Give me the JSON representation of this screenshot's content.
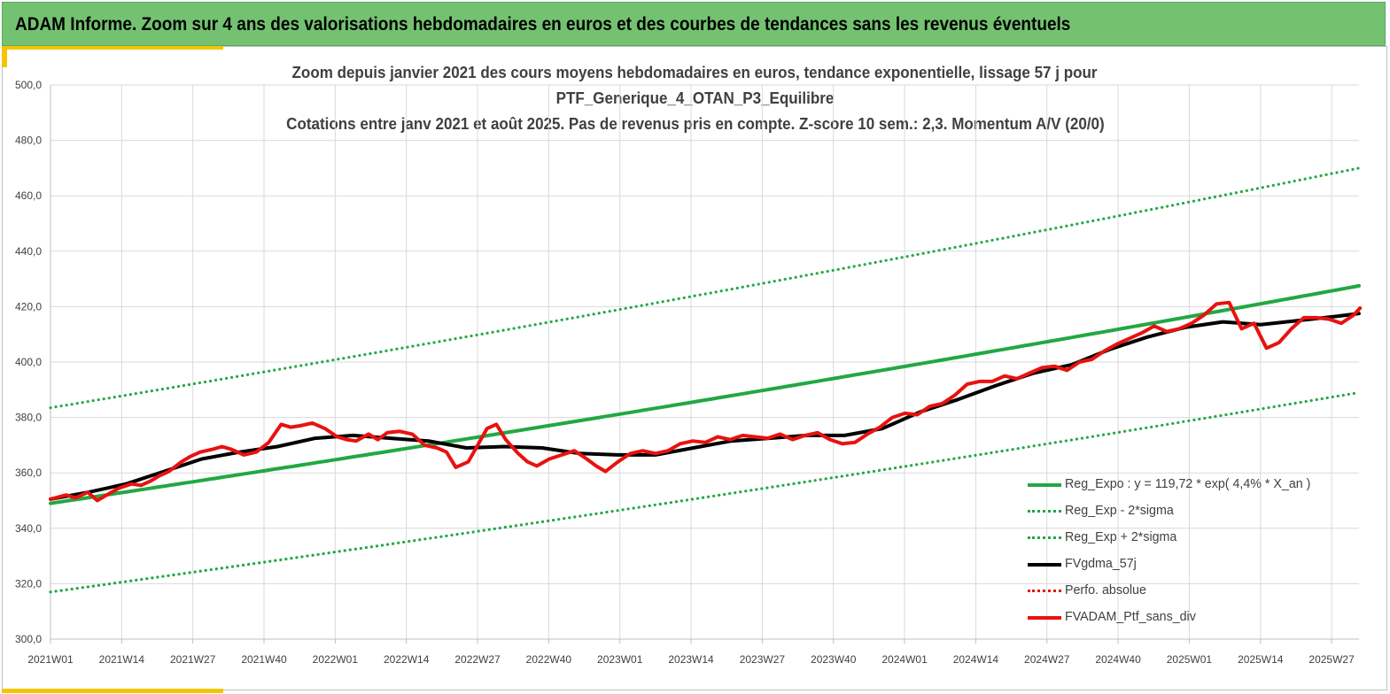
{
  "banner": {
    "title": "ADAM Informe. Zoom sur 4 ans des valorisations hebdomadaires en euros et des courbes de tendances sans les revenus éventuels"
  },
  "chart_data": {
    "type": "line",
    "title_lines": [
      "Zoom depuis janvier 2021 des cours moyens hebdomadaires  en euros, tendance exponentielle, lissage 57 j pour",
      "PTF_Generique_4_OTAN_P3_Equilibre",
      "Cotations  entre janv 2021 et août 2025. Pas de revenus pris en compte. Z-score 10 sem.: 2,3. Momentum A/V (20/0)"
    ],
    "ylim": [
      300,
      500
    ],
    "y_ticks": [
      "300,0",
      "320,0",
      "340,0",
      "360,0",
      "380,0",
      "400,0",
      "420,0",
      "440,0",
      "460,0",
      "480,0",
      "500,0"
    ],
    "x_tick_labels": [
      "2021W01",
      "2021W14",
      "2021W27",
      "2021W40",
      "2022W01",
      "2022W14",
      "2022W27",
      "2022W40",
      "2023W01",
      "2023W14",
      "2023W27",
      "2023W40",
      "2024W01",
      "2024W14",
      "2024W27",
      "2024W40",
      "2025W01",
      "2025W14",
      "2025W27"
    ],
    "x_tick_step_weeks": 13,
    "n_weeks": 240,
    "grid": true,
    "legend_position": "bottom-right",
    "series": [
      {
        "name": "Reg_Expo : y = 119,72 * exp( 4,4% *  X_an )",
        "style": "solid",
        "color": "#22a843",
        "width": 4,
        "points": [
          [
            0,
            349.0
          ],
          [
            239,
            427.5
          ]
        ],
        "interp": "exp"
      },
      {
        "name": "Reg_Exp - 2*sigma",
        "style": "dotted",
        "color": "#22a843",
        "width": 3,
        "points": [
          [
            0,
            317.0
          ],
          [
            239,
            389.0
          ]
        ],
        "interp": "exp"
      },
      {
        "name": "Reg_Exp + 2*sigma",
        "style": "dotted",
        "color": "#22a843",
        "width": 3,
        "points": [
          [
            0,
            383.5
          ],
          [
            239,
            470.0
          ]
        ],
        "interp": "exp"
      },
      {
        "name": "FVgdma_57j",
        "style": "solid",
        "color": "#000000",
        "width": 4,
        "points": [
          [
            0,
            350.5
          ],
          [
            10,
            353
          ],
          [
            20,
            356
          ],
          [
            30,
            360.5
          ],
          [
            40,
            365
          ],
          [
            50,
            367.5
          ],
          [
            60,
            369.5
          ],
          [
            70,
            372.5
          ],
          [
            80,
            373.5
          ],
          [
            90,
            372.5
          ],
          [
            100,
            371.5
          ],
          [
            110,
            369
          ],
          [
            120,
            369.5
          ],
          [
            130,
            369
          ],
          [
            140,
            367
          ],
          [
            150,
            366.5
          ],
          [
            160,
            366.5
          ],
          [
            170,
            369
          ],
          [
            180,
            371.5
          ],
          [
            190,
            372.5
          ],
          [
            200,
            373.5
          ],
          [
            210,
            373.5
          ],
          [
            220,
            376
          ],
          [
            230,
            382
          ],
          [
            240,
            386.5
          ],
          [
            250,
            391.5
          ],
          [
            260,
            396
          ],
          [
            270,
            399
          ],
          [
            280,
            404.5
          ],
          [
            290,
            409
          ],
          [
            300,
            412.5
          ],
          [
            310,
            414.5
          ],
          [
            320,
            413.5
          ],
          [
            330,
            415
          ],
          [
            340,
            416.5
          ],
          [
            346,
            417.5
          ]
        ],
        "x_scale": 0.6907
      },
      {
        "name": "Perfo. absolue",
        "style": "dotted",
        "color": "#e8120f",
        "width": 3,
        "points": []
      },
      {
        "name": "FVADAM_Ptf_sans_div",
        "style": "solid",
        "color": "#e8120f",
        "width": 4,
        "points": [
          [
            0,
            350.5
          ],
          [
            5,
            352
          ],
          [
            8,
            351
          ],
          [
            12,
            353
          ],
          [
            15,
            350
          ],
          [
            18,
            352
          ],
          [
            22,
            354.5
          ],
          [
            26,
            356
          ],
          [
            29,
            355.5
          ],
          [
            32,
            357
          ],
          [
            35,
            359
          ],
          [
            38,
            360.5
          ],
          [
            42,
            364
          ],
          [
            45,
            366
          ],
          [
            48,
            367.5
          ],
          [
            52,
            368.5
          ],
          [
            55,
            369.5
          ],
          [
            58,
            368.5
          ],
          [
            62,
            366.5
          ],
          [
            66,
            367.5
          ],
          [
            70,
            371
          ],
          [
            74,
            377.5
          ],
          [
            77,
            376.5
          ],
          [
            80,
            377
          ],
          [
            84,
            378
          ],
          [
            88,
            376
          ],
          [
            92,
            373
          ],
          [
            95,
            372
          ],
          [
            98,
            371.5
          ],
          [
            102,
            374
          ],
          [
            105,
            372
          ],
          [
            108,
            374.5
          ],
          [
            112,
            375
          ],
          [
            116,
            374
          ],
          [
            120,
            370
          ],
          [
            124,
            369
          ],
          [
            127,
            367.5
          ],
          [
            130,
            362
          ],
          [
            134,
            364
          ],
          [
            137,
            370
          ],
          [
            140,
            376
          ],
          [
            143,
            377.5
          ],
          [
            146,
            372
          ],
          [
            150,
            367
          ],
          [
            153,
            364
          ],
          [
            156,
            362.5
          ],
          [
            160,
            365
          ],
          [
            164,
            366.5
          ],
          [
            168,
            368
          ],
          [
            172,
            365
          ],
          [
            175,
            362.5
          ],
          [
            178,
            360.5
          ],
          [
            182,
            364
          ],
          [
            186,
            367
          ],
          [
            190,
            368
          ],
          [
            194,
            367
          ],
          [
            198,
            368
          ],
          [
            202,
            370.5
          ],
          [
            206,
            371.5
          ],
          [
            210,
            371
          ],
          [
            214,
            373
          ],
          [
            218,
            372
          ],
          [
            222,
            373.5
          ],
          [
            226,
            373
          ],
          [
            230,
            372.5
          ],
          [
            234,
            374
          ],
          [
            238,
            372
          ],
          [
            242,
            373.5
          ],
          [
            246,
            374.5
          ],
          [
            250,
            372
          ],
          [
            254,
            370.5
          ],
          [
            258,
            371
          ],
          [
            262,
            374
          ],
          [
            266,
            376.5
          ],
          [
            270,
            380
          ],
          [
            274,
            381.5
          ],
          [
            278,
            381
          ],
          [
            282,
            384
          ],
          [
            286,
            385
          ],
          [
            290,
            388
          ],
          [
            294,
            392
          ],
          [
            298,
            393
          ],
          [
            302,
            393
          ],
          [
            306,
            395
          ],
          [
            310,
            394
          ],
          [
            314,
            396
          ],
          [
            318,
            398
          ],
          [
            322,
            398.5
          ],
          [
            326,
            397
          ],
          [
            330,
            400
          ],
          [
            334,
            401
          ],
          [
            338,
            404
          ],
          [
            342,
            406.5
          ],
          [
            346,
            408.5
          ],
          [
            350,
            410.5
          ],
          [
            354,
            413
          ],
          [
            358,
            411
          ],
          [
            362,
            412
          ],
          [
            366,
            414
          ],
          [
            370,
            417
          ],
          [
            374,
            421
          ],
          [
            378,
            421.5
          ],
          [
            382,
            412
          ],
          [
            386,
            414
          ],
          [
            390,
            405
          ],
          [
            394,
            407
          ],
          [
            398,
            412
          ],
          [
            402,
            416
          ],
          [
            406,
            416
          ],
          [
            410,
            415.5
          ],
          [
            414,
            414
          ],
          [
            418,
            417
          ],
          [
            420,
            419.5
          ]
        ],
        "x_scale": 0.5695
      }
    ]
  }
}
